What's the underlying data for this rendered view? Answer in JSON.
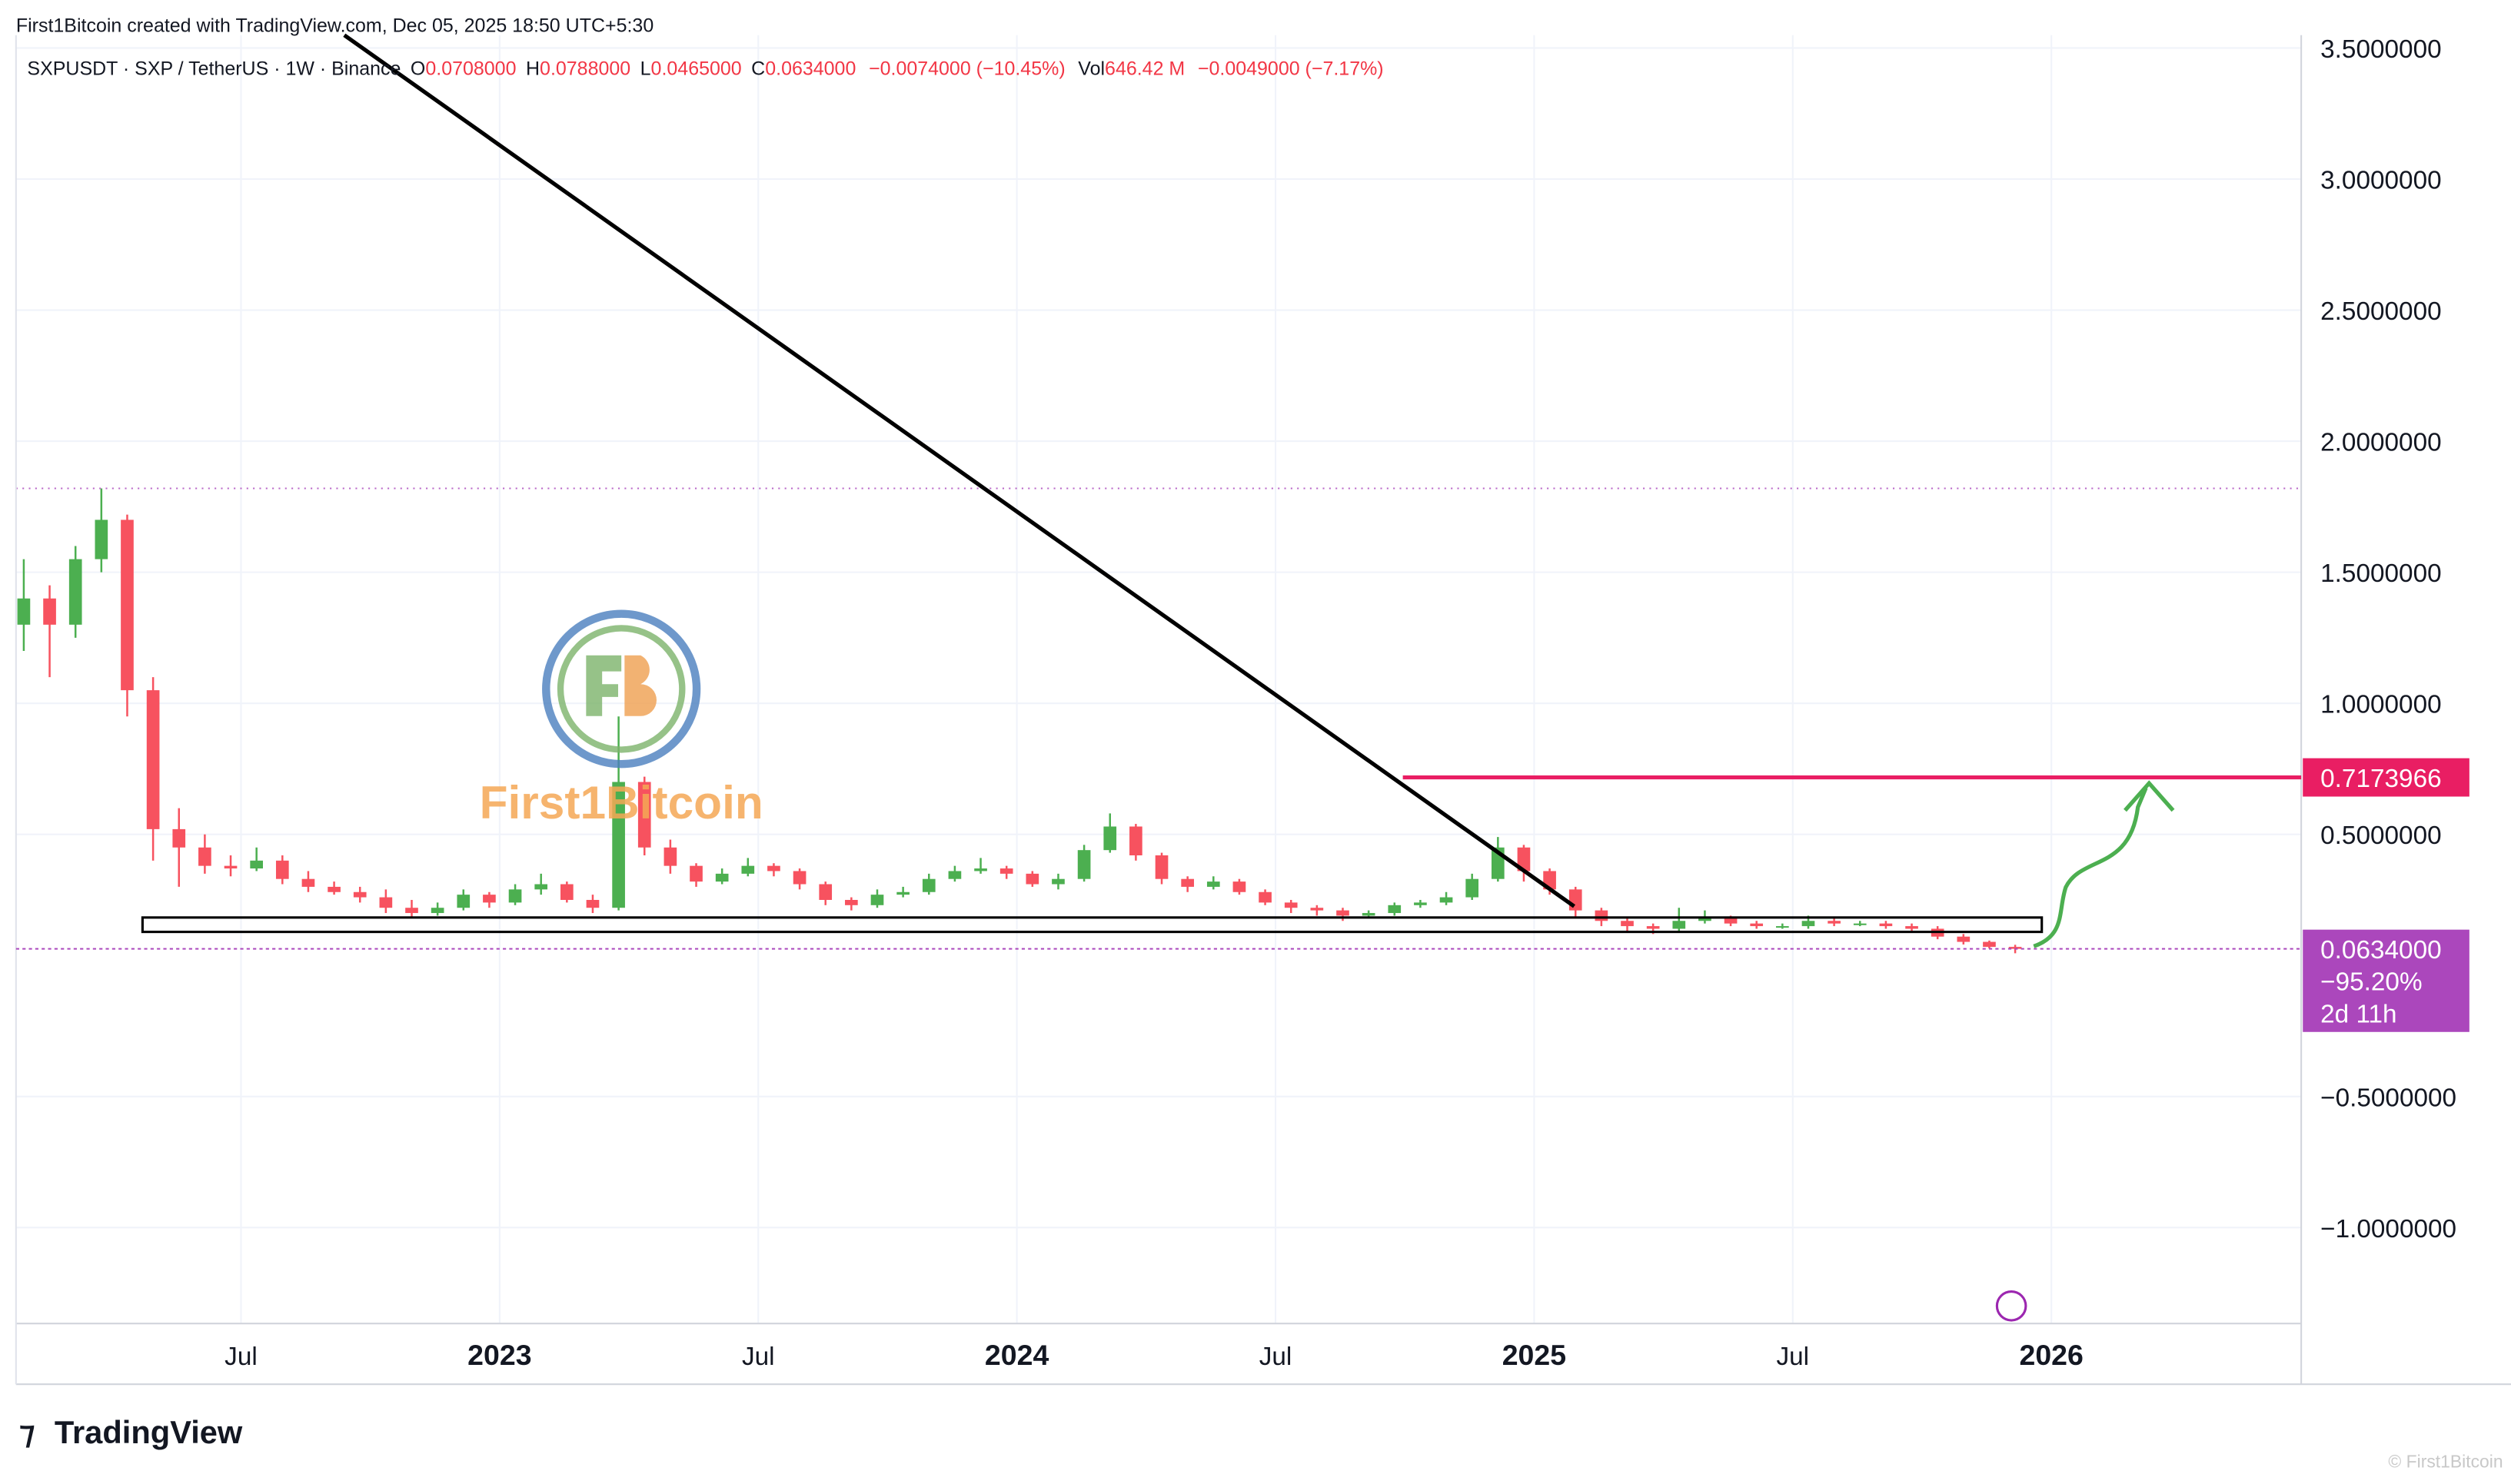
{
  "header": {
    "attribution": "First1Bitcoin created with TradingView.com, Dec 05, 2025 18:50 UTC+5:30",
    "symbol": "SXPUSDT · SXP / TetherUS · 1W · Binance",
    "o_label": "O",
    "o_value": "0.0708000",
    "h_label": "H",
    "h_value": "0.0788000",
    "l_label": "L",
    "l_value": "0.0465000",
    "c_label": "C",
    "c_value": "0.0634000",
    "change": "−0.0074000 (−10.45%)",
    "vol_label": "Vol",
    "vol_value": "646.42 M",
    "vol_change": "−0.0049000 (−7.17%)"
  },
  "watermark": "First1Bitcoin",
  "brand": "TradingView",
  "footer_credit": "© First1Bitcoin",
  "chart_data": {
    "type": "candlestick",
    "up_color": "#4caf50",
    "down_color": "#f7525f",
    "x": [
      2022.08,
      2022.13,
      2022.18,
      2022.23,
      2022.28,
      2022.33,
      2022.38,
      2022.43,
      2022.48,
      2022.53,
      2022.58,
      2022.63,
      2022.68,
      2022.73,
      2022.78,
      2022.83,
      2022.88,
      2022.93,
      2022.98,
      2023.03,
      2023.08,
      2023.13,
      2023.18,
      2023.23,
      2023.28,
      2023.33,
      2023.38,
      2023.43,
      2023.48,
      2023.53,
      2023.58,
      2023.63,
      2023.68,
      2023.73,
      2023.78,
      2023.83,
      2023.88,
      2023.93,
      2023.98,
      2024.03,
      2024.08,
      2024.13,
      2024.18,
      2024.23,
      2024.28,
      2024.33,
      2024.38,
      2024.43,
      2024.48,
      2024.53,
      2024.58,
      2024.63,
      2024.68,
      2024.73,
      2024.78,
      2024.83,
      2024.88,
      2024.93,
      2024.98,
      2025.03,
      2025.08,
      2025.13,
      2025.18,
      2025.23,
      2025.28,
      2025.33,
      2025.38,
      2025.43,
      2025.48,
      2025.53,
      2025.58,
      2025.63,
      2025.68,
      2025.73,
      2025.78,
      2025.83,
      2025.88,
      2025.93
    ],
    "open": [
      1.3,
      1.4,
      1.3,
      1.55,
      1.7,
      1.05,
      0.52,
      0.45,
      0.38,
      0.37,
      0.4,
      0.33,
      0.3,
      0.28,
      0.26,
      0.22,
      0.2,
      0.22,
      0.27,
      0.24,
      0.29,
      0.31,
      0.25,
      0.22,
      0.7,
      0.45,
      0.38,
      0.32,
      0.35,
      0.38,
      0.36,
      0.31,
      0.25,
      0.23,
      0.27,
      0.28,
      0.33,
      0.36,
      0.37,
      0.35,
      0.31,
      0.33,
      0.44,
      0.53,
      0.42,
      0.33,
      0.3,
      0.32,
      0.28,
      0.24,
      0.22,
      0.21,
      0.19,
      0.2,
      0.23,
      0.24,
      0.26,
      0.33,
      0.45,
      0.36,
      0.29,
      0.21,
      0.17,
      0.15,
      0.14,
      0.17,
      0.18,
      0.16,
      0.15,
      0.15,
      0.17,
      0.16,
      0.16,
      0.15,
      0.14,
      0.11,
      0.09,
      0.0708
    ],
    "high": [
      1.55,
      1.45,
      1.6,
      1.82,
      1.72,
      1.1,
      0.6,
      0.5,
      0.42,
      0.45,
      0.42,
      0.36,
      0.32,
      0.3,
      0.29,
      0.25,
      0.24,
      0.29,
      0.28,
      0.31,
      0.35,
      0.32,
      0.27,
      0.95,
      0.72,
      0.48,
      0.39,
      0.37,
      0.41,
      0.39,
      0.37,
      0.32,
      0.26,
      0.29,
      0.3,
      0.35,
      0.38,
      0.41,
      0.38,
      0.36,
      0.35,
      0.46,
      0.58,
      0.54,
      0.43,
      0.34,
      0.34,
      0.33,
      0.29,
      0.25,
      0.23,
      0.22,
      0.21,
      0.24,
      0.25,
      0.28,
      0.35,
      0.49,
      0.46,
      0.37,
      0.3,
      0.22,
      0.18,
      0.16,
      0.22,
      0.21,
      0.19,
      0.17,
      0.16,
      0.19,
      0.18,
      0.17,
      0.17,
      0.16,
      0.15,
      0.12,
      0.095,
      0.0788
    ],
    "low": [
      1.2,
      1.1,
      1.25,
      1.5,
      0.95,
      0.4,
      0.3,
      0.35,
      0.34,
      0.36,
      0.31,
      0.28,
      0.27,
      0.24,
      0.2,
      0.18,
      0.19,
      0.21,
      0.22,
      0.23,
      0.27,
      0.24,
      0.2,
      0.21,
      0.42,
      0.35,
      0.3,
      0.31,
      0.34,
      0.34,
      0.29,
      0.23,
      0.21,
      0.22,
      0.26,
      0.27,
      0.32,
      0.35,
      0.33,
      0.3,
      0.29,
      0.32,
      0.43,
      0.4,
      0.31,
      0.28,
      0.29,
      0.27,
      0.23,
      0.2,
      0.19,
      0.17,
      0.18,
      0.19,
      0.22,
      0.23,
      0.25,
      0.32,
      0.32,
      0.27,
      0.18,
      0.15,
      0.13,
      0.12,
      0.13,
      0.16,
      0.15,
      0.14,
      0.14,
      0.14,
      0.15,
      0.15,
      0.14,
      0.13,
      0.1,
      0.08,
      0.065,
      0.0465
    ],
    "close": [
      1.4,
      1.3,
      1.55,
      1.7,
      1.05,
      0.52,
      0.45,
      0.38,
      0.37,
      0.4,
      0.33,
      0.3,
      0.28,
      0.26,
      0.22,
      0.2,
      0.22,
      0.27,
      0.24,
      0.29,
      0.31,
      0.25,
      0.22,
      0.7,
      0.45,
      0.38,
      0.32,
      0.35,
      0.38,
      0.36,
      0.31,
      0.25,
      0.23,
      0.27,
      0.28,
      0.33,
      0.36,
      0.37,
      0.35,
      0.31,
      0.33,
      0.44,
      0.53,
      0.42,
      0.33,
      0.3,
      0.32,
      0.28,
      0.24,
      0.22,
      0.21,
      0.19,
      0.2,
      0.23,
      0.24,
      0.26,
      0.33,
      0.45,
      0.36,
      0.29,
      0.21,
      0.17,
      0.15,
      0.14,
      0.17,
      0.18,
      0.16,
      0.15,
      0.15,
      0.17,
      0.16,
      0.16,
      0.15,
      0.14,
      0.11,
      0.09,
      0.0708,
      0.0634
    ],
    "xlim": [
      2022.065,
      2026.483
    ],
    "xticks": [
      {
        "value": 2022.5,
        "label": "Jul"
      },
      2023,
      {
        "value": 2023.5,
        "label": "Jul"
      },
      2024,
      {
        "value": 2024.5,
        "label": "Jul"
      },
      2025,
      {
        "value": 2025.5,
        "label": "Jul"
      },
      2026
    ],
    "ylim": [
      -1.366,
      3.549
    ],
    "yticks": [
      {
        "value": 3.5,
        "label": "3.5000000"
      },
      {
        "value": 3.0,
        "label": "3.0000000"
      },
      {
        "value": 2.5,
        "label": "2.5000000"
      },
      {
        "value": 2.0,
        "label": "2.0000000"
      },
      {
        "value": 1.5,
        "label": "1.5000000"
      },
      {
        "value": 1.0,
        "label": "1.0000000"
      },
      {
        "value": 0.5,
        "label": "0.5000000"
      },
      {
        "value": -0.5,
        "label": "−0.5000000"
      },
      {
        "value": -1.0,
        "label": "−1.0000000"
      }
    ],
    "grid": true,
    "hline": {
      "value": 0.7173966,
      "color": "#e91e63"
    },
    "current_price": {
      "value": 0.0634,
      "label": "0.0634000",
      "change": "−95.20%",
      "countdown": "2d 11h",
      "color": "#ab47bc"
    }
  }
}
